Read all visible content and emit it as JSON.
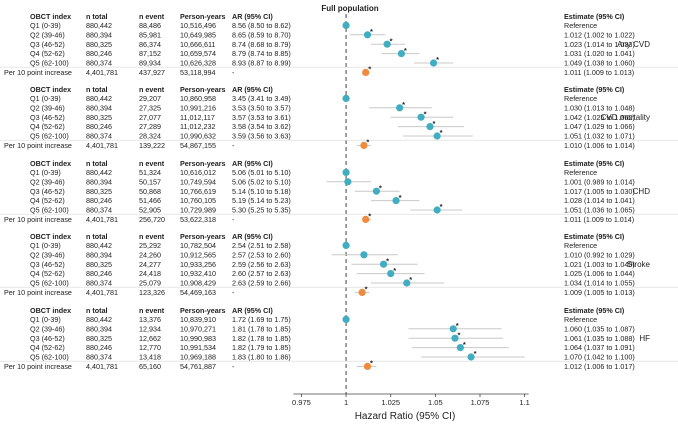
{
  "chart_data": {
    "type": "forest",
    "title": "Full population",
    "xlabel": "Hazard Ratio (95% CI)",
    "xlim": [
      0.963,
      1.103
    ],
    "xticks": [
      0.975,
      1,
      1.025,
      1.05,
      1.075,
      1.1
    ],
    "xtick_labels": [
      "0.975",
      "1",
      "1.025",
      "1.05",
      "1.075",
      "1.1"
    ],
    "reference_line": 1,
    "columns": [
      "OBCT index",
      "n total",
      "n event",
      "Person-years",
      "AR (95% CI)",
      "Estimate (95% CI)"
    ],
    "colors": {
      "quintile": "#41adc0",
      "per10": "#f08a3e",
      "ci": "#c8c8c8",
      "refline": "#444444",
      "text": "#222222"
    },
    "panels": [
      {
        "outcome": "Any CVD",
        "rows": [
          {
            "label": "Q1 (0-39)",
            "n_total": "880,442",
            "n_event": "88,486",
            "person_years": "10,516,496",
            "ar": "8.56 (8.50 to 8.62)",
            "estimate": "Reference",
            "hr": 1.0,
            "lo": 1.0,
            "hi": 1.0,
            "star": false,
            "kind": "quintile"
          },
          {
            "label": "Q2 (39-46)",
            "n_total": "880,394",
            "n_event": "85,981",
            "person_years": "10,649,985",
            "ar": "8.65 (8.59 to 8.70)",
            "estimate": "1.012 (1.002 to 1.022)",
            "hr": 1.012,
            "lo": 1.002,
            "hi": 1.022,
            "star": true,
            "kind": "quintile"
          },
          {
            "label": "Q3 (46-52)",
            "n_total": "880,325",
            "n_event": "86,374",
            "person_years": "10,666,611",
            "ar": "8.74 (8.68 to 8.79)",
            "estimate": "1.023 (1.014 to 1.033)",
            "hr": 1.023,
            "lo": 1.014,
            "hi": 1.033,
            "star": true,
            "kind": "quintile"
          },
          {
            "label": "Q4 (52-62)",
            "n_total": "880,246",
            "n_event": "87,152",
            "person_years": "10,659,574",
            "ar": "8.79 (8.74 to 8.85)",
            "estimate": "1.031 (1.020 to 1.041)",
            "hr": 1.031,
            "lo": 1.02,
            "hi": 1.041,
            "star": true,
            "kind": "quintile"
          },
          {
            "label": "Q5 (62-100)",
            "n_total": "880,374",
            "n_event": "89,934",
            "person_years": "10,626,328",
            "ar": "8.93 (8.87 to 8.99)",
            "estimate": "1.049 (1.038 to 1.060)",
            "hr": 1.049,
            "lo": 1.038,
            "hi": 1.06,
            "star": true,
            "kind": "quintile"
          },
          {
            "label": "Per 10 point increase",
            "n_total": "4,401,781",
            "n_event": "437,927",
            "person_years": "53,118,994",
            "ar": "-",
            "estimate": "1.011 (1.009 to 1.013)",
            "hr": 1.011,
            "lo": 1.009,
            "hi": 1.013,
            "star": true,
            "kind": "per10"
          }
        ]
      },
      {
        "outcome": "CVD mortality",
        "rows": [
          {
            "label": "Q1 (0-39)",
            "n_total": "880,442",
            "n_event": "29,207",
            "person_years": "10,860,958",
            "ar": "3.45 (3.41 to 3.49)",
            "estimate": "Reference",
            "hr": 1.0,
            "lo": 1.0,
            "hi": 1.0,
            "star": false,
            "kind": "quintile"
          },
          {
            "label": "Q2 (39-46)",
            "n_total": "880,394",
            "n_event": "27,325",
            "person_years": "10,991,216",
            "ar": "3.53 (3.50 to 3.57)",
            "estimate": "1.030 (1.013 to 1.048)",
            "hr": 1.03,
            "lo": 1.013,
            "hi": 1.048,
            "star": true,
            "kind": "quintile"
          },
          {
            "label": "Q3 (46-52)",
            "n_total": "880,325",
            "n_event": "27,077",
            "person_years": "11,012,117",
            "ar": "3.57 (3.53 to 3.61)",
            "estimate": "1.042 (1.025 to 1.060)",
            "hr": 1.042,
            "lo": 1.025,
            "hi": 1.06,
            "star": true,
            "kind": "quintile"
          },
          {
            "label": "Q4 (52-62)",
            "n_total": "880,246",
            "n_event": "27,289",
            "person_years": "11,012,232",
            "ar": "3.58 (3.54 to 3.62)",
            "estimate": "1.047 (1.029 to 1.066)",
            "hr": 1.047,
            "lo": 1.029,
            "hi": 1.066,
            "star": true,
            "kind": "quintile"
          },
          {
            "label": "Q5 (62-100)",
            "n_total": "880,374",
            "n_event": "28,324",
            "person_years": "10,990,632",
            "ar": "3.59 (3.56 to 3.63)",
            "estimate": "1.051 (1.032 to 1.071)",
            "hr": 1.051,
            "lo": 1.032,
            "hi": 1.071,
            "star": true,
            "kind": "quintile"
          },
          {
            "label": "Per 10 point increase",
            "n_total": "4,401,781",
            "n_event": "139,222",
            "person_years": "54,867,155",
            "ar": "-",
            "estimate": "1.010 (1.006 to 1.014)",
            "hr": 1.01,
            "lo": 1.006,
            "hi": 1.014,
            "star": true,
            "kind": "per10"
          }
        ]
      },
      {
        "outcome": "CHD",
        "rows": [
          {
            "label": "Q1 (0-39)",
            "n_total": "880,442",
            "n_event": "51,324",
            "person_years": "10,616,012",
            "ar": "5.06 (5.01 to 5.10)",
            "estimate": "Reference",
            "hr": 1.0,
            "lo": 1.0,
            "hi": 1.0,
            "star": false,
            "kind": "quintile"
          },
          {
            "label": "Q2 (39-46)",
            "n_total": "880,394",
            "n_event": "50,157",
            "person_years": "10,749,594",
            "ar": "5.06 (5.02 to 5.10)",
            "estimate": "1.001 (0.989 to 1.014)",
            "hr": 1.001,
            "lo": 0.989,
            "hi": 1.014,
            "star": false,
            "kind": "quintile"
          },
          {
            "label": "Q3 (46-52)",
            "n_total": "880,325",
            "n_event": "50,868",
            "person_years": "10,766,619",
            "ar": "5.14 (5.10 to 5.18)",
            "estimate": "1.017 (1.005 to 1.030)",
            "hr": 1.017,
            "lo": 1.005,
            "hi": 1.03,
            "star": true,
            "kind": "quintile"
          },
          {
            "label": "Q4 (52-62)",
            "n_total": "880,246",
            "n_event": "51,466",
            "person_years": "10,760,105",
            "ar": "5.19 (5.14 to 5.23)",
            "estimate": "1.028 (1.014 to 1.041)",
            "hr": 1.028,
            "lo": 1.014,
            "hi": 1.041,
            "star": true,
            "kind": "quintile"
          },
          {
            "label": "Q5 (62-100)",
            "n_total": "880,374",
            "n_event": "52,905",
            "person_years": "10,729,989",
            "ar": "5.30 (5.25 to 5.35)",
            "estimate": "1.051 (1.036 to 1.065)",
            "hr": 1.051,
            "lo": 1.036,
            "hi": 1.065,
            "star": true,
            "kind": "quintile"
          },
          {
            "label": "Per 10 point increase",
            "n_total": "4,401,781",
            "n_event": "256,720",
            "person_years": "53,622,318",
            "ar": "-",
            "estimate": "1.011 (1.009 to 1.014)",
            "hr": 1.011,
            "lo": 1.009,
            "hi": 1.014,
            "star": true,
            "kind": "per10"
          }
        ]
      },
      {
        "outcome": "Stroke",
        "rows": [
          {
            "label": "Q1 (0-39)",
            "n_total": "880,442",
            "n_event": "25,292",
            "person_years": "10,782,504",
            "ar": "2.54 (2.51 to 2.58)",
            "estimate": "Reference",
            "hr": 1.0,
            "lo": 1.0,
            "hi": 1.0,
            "star": false,
            "kind": "quintile"
          },
          {
            "label": "Q2 (39-46)",
            "n_total": "880,394",
            "n_event": "24,260",
            "person_years": "10,912,565",
            "ar": "2.57 (2.53 to 2.60)",
            "estimate": "1.010 (0.992 to 1.029)",
            "hr": 1.01,
            "lo": 0.992,
            "hi": 1.029,
            "star": false,
            "kind": "quintile"
          },
          {
            "label": "Q3 (46-52)",
            "n_total": "880,325",
            "n_event": "24,277",
            "person_years": "10,933,256",
            "ar": "2.59 (2.56 to 2.63)",
            "estimate": "1.021 (1.003 to 1.040)",
            "hr": 1.021,
            "lo": 1.003,
            "hi": 1.04,
            "star": true,
            "kind": "quintile"
          },
          {
            "label": "Q4 (52-62)",
            "n_total": "880,246",
            "n_event": "24,418",
            "person_years": "10,932,410",
            "ar": "2.60 (2.57 to 2.63)",
            "estimate": "1.025 (1.006 to 1.044)",
            "hr": 1.025,
            "lo": 1.006,
            "hi": 1.044,
            "star": true,
            "kind": "quintile"
          },
          {
            "label": "Q5 (62-100)",
            "n_total": "880,374",
            "n_event": "25,079",
            "person_years": "10,908,429",
            "ar": "2.63 (2.59 to 2.66)",
            "estimate": "1.034 (1.014 to 1.055)",
            "hr": 1.034,
            "lo": 1.014,
            "hi": 1.055,
            "star": true,
            "kind": "quintile"
          },
          {
            "label": "Per 10 point increase",
            "n_total": "4,401,781",
            "n_event": "123,326",
            "person_years": "54,469,163",
            "ar": "-",
            "estimate": "1.009 (1.005 to 1.013)",
            "hr": 1.009,
            "lo": 1.005,
            "hi": 1.013,
            "star": true,
            "kind": "per10"
          }
        ]
      },
      {
        "outcome": "HF",
        "rows": [
          {
            "label": "Q1 (0-39)",
            "n_total": "880,442",
            "n_event": "13,376",
            "person_years": "10,839,910",
            "ar": "1.72 (1.69 to 1.75)",
            "estimate": "Reference",
            "hr": 1.0,
            "lo": 1.0,
            "hi": 1.0,
            "star": false,
            "kind": "quintile"
          },
          {
            "label": "Q2 (39-46)",
            "n_total": "880,394",
            "n_event": "12,934",
            "person_years": "10,970,271",
            "ar": "1.81 (1.78 to 1.85)",
            "estimate": "1.060 (1.035 to 1.087)",
            "hr": 1.06,
            "lo": 1.035,
            "hi": 1.087,
            "star": true,
            "kind": "quintile"
          },
          {
            "label": "Q3 (46-52)",
            "n_total": "880,325",
            "n_event": "12,662",
            "person_years": "10,990,983",
            "ar": "1.82 (1.78 to 1.85)",
            "estimate": "1.061 (1.035 to 1.088)",
            "hr": 1.061,
            "lo": 1.035,
            "hi": 1.088,
            "star": true,
            "kind": "quintile"
          },
          {
            "label": "Q4 (52-62)",
            "n_total": "880,246",
            "n_event": "12,770",
            "person_years": "10,991,534",
            "ar": "1.82 (1.79 to 1.85)",
            "estimate": "1.064 (1.037 to 1.091)",
            "hr": 1.064,
            "lo": 1.037,
            "hi": 1.091,
            "star": true,
            "kind": "quintile"
          },
          {
            "label": "Q5 (62-100)",
            "n_total": "880,374",
            "n_event": "13,418",
            "person_years": "10,969,188",
            "ar": "1.83 (1.80 to 1.86)",
            "estimate": "1.070 (1.042 to 1.100)",
            "hr": 1.07,
            "lo": 1.042,
            "hi": 1.1,
            "star": true,
            "kind": "quintile"
          },
          {
            "label": "Per 10 point increase",
            "n_total": "4,401,781",
            "n_event": "65,160",
            "person_years": "54,761,887",
            "ar": "-",
            "estimate": "1.012 (1.006 to 1.017)",
            "hr": 1.012,
            "lo": 1.006,
            "hi": 1.017,
            "star": true,
            "kind": "per10"
          }
        ]
      }
    ]
  }
}
